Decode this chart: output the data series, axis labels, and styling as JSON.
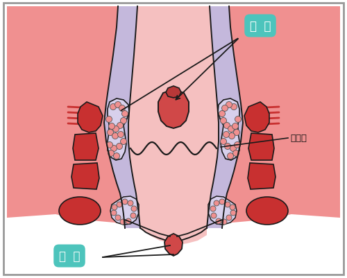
{
  "bg_pink": "#F09090",
  "bg_white": "#FFFFFF",
  "canal_pink": "#F5C0C0",
  "canal_lining": "#C4B8DC",
  "canal_lining_light": "#D8D0EC",
  "muscle_red": "#C83030",
  "muscle_dark": "#B02020",
  "hem_red": "#D04848",
  "hem_dark": "#B83838",
  "outline": "#1A1A1A",
  "teal": "#4DC4BC",
  "white": "#FFFFFF",
  "label_internal": "内  痔",
  "label_external": "外  痔",
  "label_dentate": "齿状线",
  "skin_light": "#F5C8C8"
}
